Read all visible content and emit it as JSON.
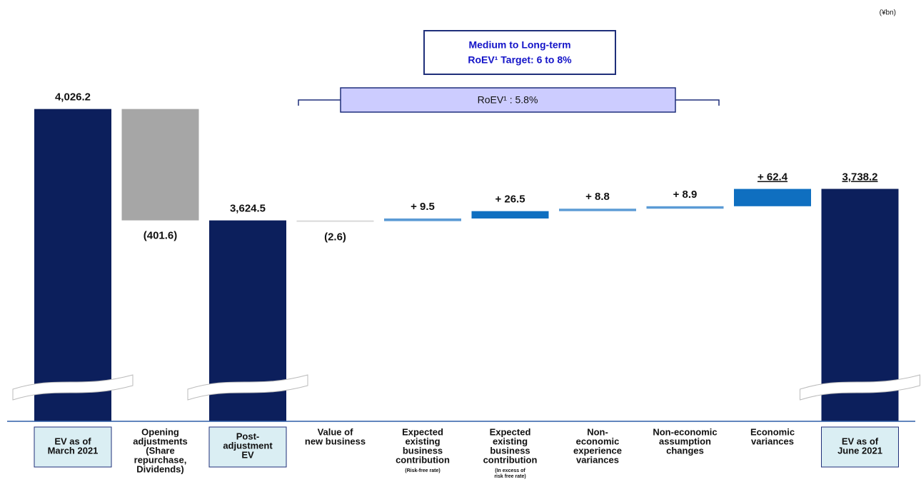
{
  "chart_data": {
    "type": "waterfall",
    "unit_label": "(¥bn)",
    "categories": [
      [
        "EV as of",
        "March 2021"
      ],
      [
        "Opening",
        "adjustments",
        "(Share",
        "repurchase,",
        "Dividends)"
      ],
      [
        "Post-",
        "adjustment",
        "EV"
      ],
      [
        "Value of",
        "new business"
      ],
      [
        "Expected",
        "existing",
        "business",
        "contribution"
      ],
      [
        "Expected",
        "existing",
        "business",
        "contribution"
      ],
      [
        "Non-",
        "economic",
        "experience",
        "variances"
      ],
      [
        "Non-economic",
        "assumption",
        "changes"
      ],
      [
        "Economic",
        "variances"
      ],
      [
        "EV as of",
        "June 2021"
      ]
    ],
    "category_notes": [
      null,
      null,
      null,
      null,
      [
        "(Risk-free rate)"
      ],
      [
        "(In excess of",
        "risk free rate)"
      ],
      null,
      null,
      null,
      null
    ],
    "values": [
      4026.2,
      -401.6,
      3624.5,
      -2.6,
      9.5,
      26.5,
      8.8,
      8.9,
      62.4,
      3738.2
    ],
    "value_labels": [
      "4,026.2",
      "(401.6)",
      "3,624.5",
      "(2.6)",
      "+ 9.5",
      "+ 26.5",
      "+ 8.8",
      "+ 8.9",
      "+ 62.4",
      "3,738.2"
    ],
    "underlined_labels": [
      false,
      false,
      false,
      false,
      false,
      false,
      false,
      false,
      true,
      true
    ],
    "is_total": [
      true,
      false,
      true,
      false,
      false,
      false,
      false,
      false,
      false,
      true
    ],
    "colors": [
      "#0c1f5c",
      "#a6a6a6",
      "#0c1f5c",
      "#d9d9d9",
      "#5b9bd5",
      "#0f6fc0",
      "#5b9bd5",
      "#5b9bd5",
      "#0f6fc0",
      "#0c1f5c"
    ],
    "ylim": [
      2900,
      4100
    ],
    "axis_break": true,
    "target_annotation": [
      "Medium to Long-term",
      "RoEV¹ Target: 6 to 8%"
    ],
    "roev_annotation": "RoEV¹ : 5.8%"
  }
}
